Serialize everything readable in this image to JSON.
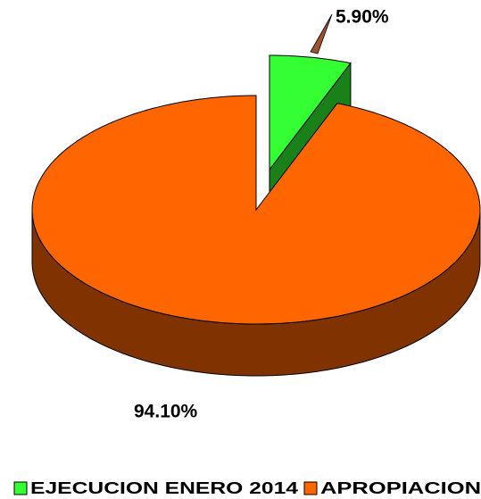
{
  "chart_data": {
    "type": "pie",
    "categories": [
      "EJECUCION ENERO 2014",
      "APROPIACION"
    ],
    "values": [
      5.9,
      94.1
    ],
    "value_labels": [
      "5.90%",
      "94.10%"
    ],
    "colors": [
      "#33ff33",
      "#ff6600"
    ],
    "legend": "bottom"
  }
}
